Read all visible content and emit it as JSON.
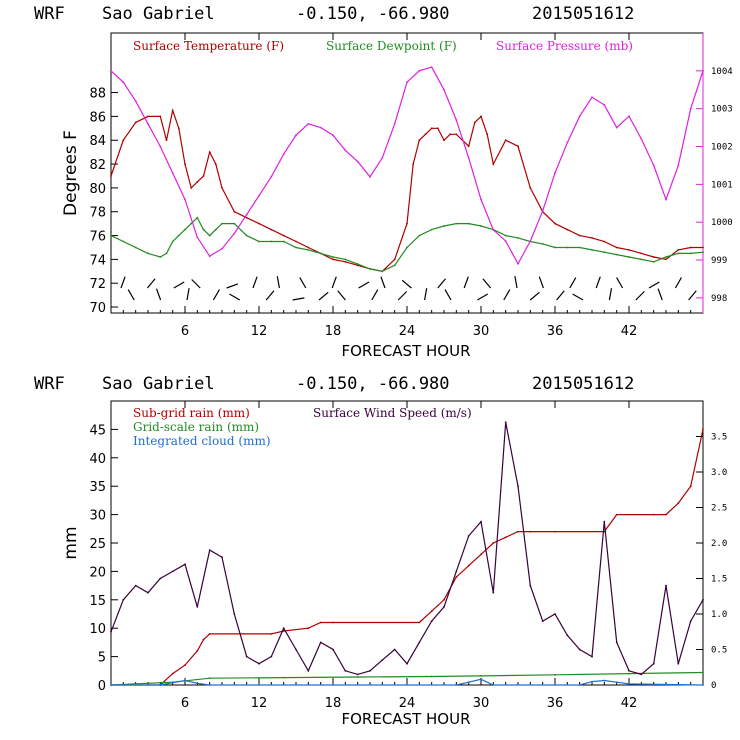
{
  "colors": {
    "red": "#b00000",
    "green": "#228b22",
    "magenta": "#e020e0",
    "purple": "#3a003a",
    "blue": "#1e6fd0",
    "axis": "#000000"
  },
  "chart_data": [
    {
      "type": "line",
      "header": {
        "model": "WRF",
        "station": "Sao Gabriel",
        "coords": "-0.150, -66.980",
        "run": "2015051612"
      },
      "xlabel": "FORECAST HOUR",
      "ylabel": "Degrees F",
      "xlim": [
        0,
        48
      ],
      "ylim": [
        69.5,
        93
      ],
      "y2lim": [
        997.6,
        1005
      ],
      "xticks": [
        6,
        12,
        18,
        24,
        30,
        36,
        42
      ],
      "yticks": [
        70,
        72,
        74,
        76,
        78,
        80,
        82,
        84,
        86,
        88
      ],
      "y2ticks": [
        998,
        999,
        1000,
        1001,
        1002,
        1003,
        1004
      ],
      "series": [
        {
          "name": "Surface Temperature (F)",
          "color": "#b00000",
          "axis": "left",
          "x": [
            0,
            1,
            2,
            3,
            4,
            4.5,
            5,
            5.5,
            6,
            6.5,
            7,
            7.5,
            8,
            8.5,
            9,
            10,
            11,
            12,
            13,
            14,
            15,
            16,
            17,
            18,
            19,
            20,
            21,
            22,
            23,
            24,
            24.5,
            25,
            25.5,
            26,
            26.5,
            27,
            27.5,
            28,
            28.5,
            29,
            29.5,
            30,
            30.5,
            31,
            32,
            33,
            34,
            35,
            36,
            37,
            38,
            39,
            40,
            41,
            42,
            43,
            44,
            45,
            46,
            47,
            48
          ],
          "values": [
            81,
            84,
            85.5,
            86,
            86,
            84,
            86.5,
            85,
            82,
            80,
            80.5,
            81,
            83,
            82,
            80,
            78,
            77.5,
            77,
            76.5,
            76,
            75.5,
            75,
            74.5,
            74,
            73.8,
            73.5,
            73.2,
            73,
            74,
            77,
            82,
            84,
            84.5,
            85,
            85,
            84,
            84.5,
            84.5,
            84,
            83.5,
            85.5,
            86,
            84.5,
            82,
            84,
            83.5,
            80,
            78,
            77,
            76.5,
            76,
            75.8,
            75.5,
            75,
            74.8,
            74.5,
            74.2,
            74,
            74.8,
            75,
            75
          ]
        },
        {
          "name": "Surface Dewpoint (F)",
          "color": "#228b22",
          "axis": "left",
          "x": [
            0,
            1,
            2,
            3,
            4,
            4.5,
            5,
            5.5,
            6,
            6.5,
            7,
            7.5,
            8,
            8.5,
            9,
            10,
            11,
            12,
            13,
            14,
            15,
            16,
            17,
            18,
            19,
            20,
            21,
            22,
            23,
            24,
            25,
            26,
            27,
            28,
            29,
            30,
            31,
            32,
            33,
            34,
            35,
            36,
            37,
            38,
            39,
            40,
            41,
            42,
            43,
            44,
            45,
            46,
            47,
            48
          ],
          "values": [
            76,
            75.5,
            75,
            74.5,
            74.2,
            74.5,
            75.5,
            76,
            76.5,
            77,
            77.5,
            76.5,
            76,
            76.5,
            77,
            77,
            76,
            75.5,
            75.5,
            75.5,
            75,
            74.8,
            74.5,
            74.2,
            74,
            73.6,
            73.2,
            73,
            73.5,
            75,
            76,
            76.5,
            76.8,
            77,
            77,
            76.8,
            76.5,
            76,
            75.8,
            75.5,
            75.3,
            75,
            75,
            75,
            74.8,
            74.6,
            74.4,
            74.2,
            74,
            73.8,
            74.2,
            74.5,
            74.5,
            74.6
          ]
        },
        {
          "name": "Surface Pressure (mb)",
          "color": "#e020e0",
          "axis": "right",
          "x": [
            0,
            1,
            2,
            3,
            4,
            5,
            6,
            7,
            8,
            9,
            10,
            11,
            12,
            13,
            14,
            15,
            16,
            17,
            18,
            19,
            20,
            21,
            22,
            23,
            24,
            25,
            26,
            27,
            28,
            29,
            30,
            31,
            32,
            33,
            34,
            35,
            36,
            37,
            38,
            39,
            40,
            41,
            42,
            43,
            44,
            45,
            46,
            47,
            48
          ],
          "values": [
            1004,
            1003.7,
            1003.2,
            1002.6,
            1002,
            1001.3,
            1000.6,
            999.6,
            999.1,
            999.3,
            999.7,
            1000.2,
            1000.7,
            1001.2,
            1001.8,
            1002.3,
            1002.6,
            1002.5,
            1002.3,
            1001.9,
            1001.6,
            1001.2,
            1001.7,
            1002.6,
            1003.7,
            1004,
            1004.1,
            1003.5,
            1002.7,
            1001.7,
            1000.6,
            999.8,
            999.5,
            998.9,
            999.5,
            1000.3,
            1001.3,
            1002.1,
            1002.8,
            1003.3,
            1003.1,
            1002.5,
            1002.8,
            1002.2,
            1001.5,
            1000.6,
            1001.5,
            1003,
            1004
          ]
        }
      ],
      "wind_barbs": "row of wind barbs along bottom of panel"
    },
    {
      "type": "line",
      "header": {
        "model": "WRF",
        "station": "Sao Gabriel",
        "coords": "-0.150, -66.980",
        "run": "2015051612"
      },
      "xlabel": "FORECAST HOUR",
      "ylabel": "mm",
      "xlim": [
        0,
        48
      ],
      "ylim": [
        0,
        50
      ],
      "y2lim": [
        0,
        4.0
      ],
      "xticks": [
        6,
        12,
        18,
        24,
        30,
        36,
        42
      ],
      "yticks": [
        0,
        5,
        10,
        15,
        20,
        25,
        30,
        35,
        40,
        45
      ],
      "y2ticks": [
        "0",
        "0.5",
        "1.0",
        "1.5",
        "2.0",
        "2.5",
        "3.0",
        "3.5"
      ],
      "series": [
        {
          "name": "Sub-grid rain (mm)",
          "color": "#b00000",
          "axis": "left",
          "x": [
            0,
            4,
            5,
            6,
            7,
            7.5,
            8,
            13,
            14,
            16,
            17,
            18,
            25,
            26,
            27,
            28,
            29,
            30,
            31,
            32,
            33,
            34,
            36,
            40,
            41,
            44,
            45,
            46,
            47,
            48
          ],
          "values": [
            0,
            0,
            2,
            3.5,
            6,
            8,
            9,
            9,
            9.5,
            10,
            11,
            11,
            11,
            13,
            15,
            19,
            21,
            23,
            25,
            26,
            27,
            27,
            27,
            27,
            30,
            30,
            30,
            32,
            35,
            45
          ]
        },
        {
          "name": "Grid-scale rain (mm)",
          "color": "#228b22",
          "axis": "left",
          "x": [
            0,
            5,
            8,
            14,
            20,
            26,
            30,
            36,
            42,
            48
          ],
          "values": [
            0,
            0.5,
            1.2,
            1.3,
            1.4,
            1.5,
            1.6,
            1.8,
            2.0,
            2.2
          ]
        },
        {
          "name": "Integrated cloud (mm)",
          "color": "#1e6fd0",
          "axis": "left",
          "x": [
            0,
            4,
            5,
            6,
            7,
            8,
            28,
            29,
            30,
            31,
            38,
            39,
            40,
            41,
            42,
            48
          ],
          "values": [
            0,
            0,
            0.4,
            0.8,
            0.3,
            0,
            0,
            0.5,
            1,
            0,
            0,
            0.6,
            0.8,
            0.5,
            0.2,
            0
          ]
        },
        {
          "name": "Surface Wind Speed (m/s)",
          "color": "#3a003a",
          "axis": "right",
          "x": [
            0,
            1,
            2,
            3,
            4,
            5,
            6,
            7,
            8,
            9,
            10,
            11,
            12,
            13,
            14,
            15,
            16,
            17,
            18,
            19,
            20,
            21,
            22,
            23,
            24,
            25,
            26,
            27,
            28,
            29,
            30,
            31,
            32,
            33,
            34,
            35,
            36,
            37,
            38,
            39,
            40,
            41,
            42,
            43,
            44,
            45,
            46,
            47,
            48
          ],
          "values": [
            0.75,
            1.2,
            1.4,
            1.3,
            1.5,
            1.6,
            1.7,
            1.1,
            1.9,
            1.8,
            1.0,
            0.4,
            0.3,
            0.4,
            0.8,
            0.5,
            0.2,
            0.6,
            0.5,
            0.2,
            0.15,
            0.2,
            0.35,
            0.5,
            0.3,
            0.6,
            0.9,
            1.1,
            1.6,
            2.1,
            2.3,
            1.3,
            3.7,
            2.8,
            1.4,
            0.9,
            1.0,
            0.7,
            0.5,
            0.4,
            2.3,
            0.6,
            0.2,
            0.15,
            0.3,
            1.4,
            0.3,
            0.9,
            1.2
          ]
        }
      ]
    }
  ]
}
